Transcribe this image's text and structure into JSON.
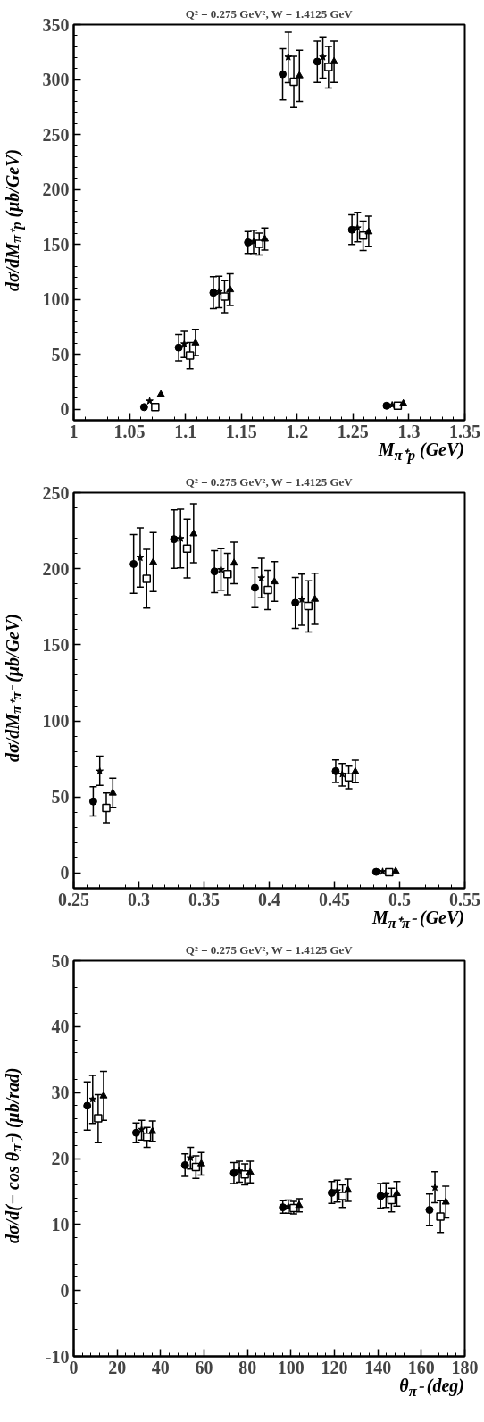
{
  "chart_data": [
    {
      "type": "scatter",
      "title": "Q² = 0.275 GeV², W = 1.4125 GeV",
      "xlabel": "M$_{π⁺p}$ (GeV)",
      "ylabel": "dσ/dM$_{π⁺p}$ (μb/GeV)",
      "xlim": [
        1,
        1.35
      ],
      "ylim": [
        -10,
        350
      ],
      "xticks": [
        1,
        1.05,
        1.1,
        1.15,
        1.2,
        1.25,
        1.3,
        1.35
      ],
      "yticks": [
        0,
        50,
        100,
        150,
        200,
        250,
        300,
        350
      ],
      "grid": false,
      "series": [
        {
          "marker": "circle",
          "color": "#000000",
          "x": [
            1.063,
            1.094,
            1.125,
            1.156,
            1.187,
            1.218,
            1.249,
            1.28
          ],
          "values": [
            1.9,
            56.1,
            106,
            151.8,
            304.8,
            316.3,
            163.3,
            3.2
          ],
          "errors": [
            null,
            [
              44,
              68
            ],
            [
              91.5,
              120.6
            ],
            [
              141.7,
              161.7
            ],
            [
              281.5,
              328.1
            ],
            [
              297.4,
              334.9
            ],
            [
              149.9,
              177
            ],
            null
          ]
        },
        {
          "marker": "star",
          "color": "#000000",
          "x": [
            1.068,
            1.099,
            1.13,
            1.161,
            1.192,
            1.223,
            1.254,
            1.285
          ],
          "values": [
            7.4,
            59.4,
            106.9,
            152.6,
            320.4,
            320.4,
            165,
            3.8
          ],
          "errors": [
            null,
            [
              47.1,
              70.9
            ],
            [
              92.3,
              121.1
            ],
            [
              141.7,
              162.8
            ],
            [
              297.1,
              343.1
            ],
            [
              301.2,
              338.8
            ],
            [
              152.4,
              179.2
            ],
            null
          ]
        },
        {
          "marker": "square",
          "color": "#000000",
          "x": [
            1.073,
            1.104,
            1.135,
            1.166,
            1.197,
            1.228,
            1.259,
            1.29
          ],
          "values": [
            1.9,
            49,
            102.5,
            150.4,
            297.9,
            311.3,
            158.1,
            3.2
          ],
          "errors": [
            null,
            [
              37,
              60.8
            ],
            [
              88,
              117
            ],
            [
              140.3,
              160.3
            ],
            [
              274.6,
              321.2
            ],
            [
              292.4,
              330
            ],
            [
              144.4,
              171.3
            ],
            null
          ]
        },
        {
          "marker": "triangle",
          "color": "#000000",
          "x": [
            1.078,
            1.109,
            1.14,
            1.171,
            1.202,
            1.233,
            1.264,
            1.295
          ],
          "values": [
            13.4,
            60.3,
            108.8,
            154.8,
            303.4,
            316.3,
            161.4,
            5.1
          ],
          "errors": [
            null,
            [
              49,
              72.6
            ],
            [
              94.5,
              123.3
            ],
            [
              144.9,
              164.9
            ],
            [
              280.1,
              326.7
            ],
            [
              297.4,
              334.9
            ],
            [
              148.2,
              175.7
            ],
            null
          ]
        }
      ]
    },
    {
      "type": "scatter",
      "title": "Q² = 0.275 GeV², W = 1.4125 GeV",
      "xlabel": "M$_{π⁺π⁻}$ (GeV)",
      "ylabel": "dσ/dM$_{π⁺π⁻}$ (μb/GeV)",
      "xlim": [
        0.25,
        0.55
      ],
      "ylim": [
        -10,
        250
      ],
      "xticks": [
        0.25,
        0.3,
        0.35,
        0.4,
        0.45,
        0.5,
        0.55
      ],
      "yticks": [
        0,
        50,
        100,
        150,
        200,
        250
      ],
      "grid": false,
      "series": [
        {
          "marker": "circle",
          "color": "#000000",
          "x": [
            0.265,
            0.296,
            0.327,
            0.358,
            0.389,
            0.42,
            0.451,
            0.482
          ],
          "values": [
            47.1,
            203.1,
            219.4,
            198.2,
            187.5,
            177.6,
            67,
            0.8
          ],
          "errors": [
            [
              37.6,
              56.7
            ],
            [
              183.8,
              222.4
            ],
            [
              200.2,
              238.7
            ],
            [
              184.2,
              211.8
            ],
            [
              174.5,
              200.5
            ],
            [
              160.8,
              194.3
            ],
            [
              59.6,
              74.4
            ],
            null
          ]
        },
        {
          "marker": "star",
          "color": "#000000",
          "x": [
            0.27,
            0.301,
            0.332,
            0.363,
            0.394,
            0.425,
            0.456,
            0.487
          ],
          "values": [
            67,
            207.2,
            219.8,
            199.4,
            193.9,
            179.7,
            65,
            1
          ],
          "errors": [
            [
              57.6,
              76.9
            ],
            [
              187.9,
              226.8
            ],
            [
              200.5,
              239.1
            ],
            [
              185.9,
              213.2
            ],
            [
              180.9,
              206.8
            ],
            [
              162.8,
              196.5
            ],
            [
              57.2,
              72
            ],
            null
          ]
        },
        {
          "marker": "square",
          "color": "#000000",
          "x": [
            0.275,
            0.306,
            0.337,
            0.368,
            0.399,
            0.43,
            0.461,
            0.492
          ],
          "values": [
            42.8,
            193.3,
            213.2,
            196.5,
            186.1,
            175.4,
            62.9,
            0.6
          ],
          "errors": [
            [
              33.1,
              52.6
            ],
            [
              174.1,
              212.8
            ],
            [
              193.9,
              232.5
            ],
            [
              182.8,
              210.1
            ],
            [
              173.1,
              199
            ],
            [
              158.5,
              192
            ],
            [
              55.5,
              70.3
            ],
            null
          ]
        },
        {
          "marker": "triangle",
          "color": "#000000",
          "x": [
            0.28,
            0.311,
            0.342,
            0.373,
            0.404,
            0.435,
            0.466,
            0.497
          ],
          "values": [
            52.6,
            204.2,
            222.9,
            203.7,
            191.4,
            179.9,
            66.6,
            1.2
          ],
          "errors": [
            [
              43,
              62.3
            ],
            [
              185,
              223.7
            ],
            [
              203.9,
              242.6
            ],
            [
              190.2,
              217.5
            ],
            [
              178.5,
              204.6
            ],
            [
              163.4,
              197
            ],
            [
              59.4,
              74.2
            ],
            null
          ]
        }
      ]
    },
    {
      "type": "scatter",
      "title": "Q² = 0.275 GeV², W = 1.4125 GeV",
      "xlabel": "θ$_{π⁻}$ (deg)",
      "ylabel": "dσ/d(− cos θ$_{π⁻}$) (μb/rad)",
      "xlim": [
        0,
        180
      ],
      "ylim": [
        -10,
        50
      ],
      "xticks": [
        0,
        20,
        40,
        60,
        80,
        100,
        120,
        140,
        160,
        180
      ],
      "yticks": [
        -10,
        0,
        10,
        20,
        30,
        40,
        50
      ],
      "grid": false,
      "series": [
        {
          "marker": "circle",
          "color": "#000000",
          "x": [
            6.25,
            28.75,
            51.25,
            73.75,
            96.25,
            118.75,
            141.25,
            163.75
          ],
          "values": [
            28,
            23.9,
            19,
            17.8,
            12.6,
            14.8,
            14.3,
            12.2
          ],
          "errors": [
            [
              24.3,
              31.6
            ],
            [
              22.4,
              25.4
            ],
            [
              17.3,
              20.7
            ],
            [
              16.2,
              19.4
            ],
            [
              11.7,
              13.6
            ],
            [
              13.2,
              16.5
            ],
            [
              12.5,
              16.2
            ],
            [
              9.8,
              14.6
            ]
          ]
        },
        {
          "marker": "star",
          "color": "#000000",
          "x": [
            8.75,
            31.25,
            53.75,
            76.25,
            98.75,
            121.25,
            143.75,
            166.25
          ],
          "values": [
            29,
            24.4,
            20.1,
            18.1,
            12.7,
            15.1,
            14.5,
            15.6
          ],
          "errors": [
            [
              25.3,
              32.6
            ],
            [
              22.8,
              25.8
            ],
            [
              18.4,
              21.7
            ],
            [
              16.4,
              19.6
            ],
            [
              11.7,
              13.7
            ],
            [
              13.4,
              16.7
            ],
            [
              12.6,
              16.3
            ],
            [
              13.3,
              18
            ]
          ]
        },
        {
          "marker": "square",
          "color": "#000000",
          "x": [
            11.25,
            33.75,
            56.25,
            78.75,
            101.25,
            123.75,
            146.25,
            168.75
          ],
          "values": [
            26.1,
            23.3,
            18.7,
            17.6,
            12.5,
            14.3,
            13.7,
            11.2
          ],
          "errors": [
            [
              22.4,
              29.7
            ],
            [
              21.7,
              24.7
            ],
            [
              17,
              20.4
            ],
            [
              16,
              19.2
            ],
            [
              11.6,
              13.5
            ],
            [
              12.6,
              16
            ],
            [
              11.9,
              15.5
            ],
            [
              8.8,
              13.6
            ]
          ]
        },
        {
          "marker": "triangle",
          "color": "#000000",
          "x": [
            13.75,
            36.25,
            58.75,
            81.25,
            103.75,
            126.25,
            148.75,
            171.25
          ],
          "values": [
            29.5,
            24.1,
            19.2,
            17.9,
            12.9,
            15.2,
            14.7,
            13.4
          ],
          "errors": [
            [
              25.8,
              33.2
            ],
            [
              22.6,
              25.7
            ],
            [
              17.5,
              20.9
            ],
            [
              16.3,
              19.6
            ],
            [
              11.9,
              13.9
            ],
            [
              13.5,
              16.9
            ],
            [
              12.8,
              16.5
            ],
            [
              11,
              15.8
            ]
          ]
        }
      ]
    }
  ]
}
